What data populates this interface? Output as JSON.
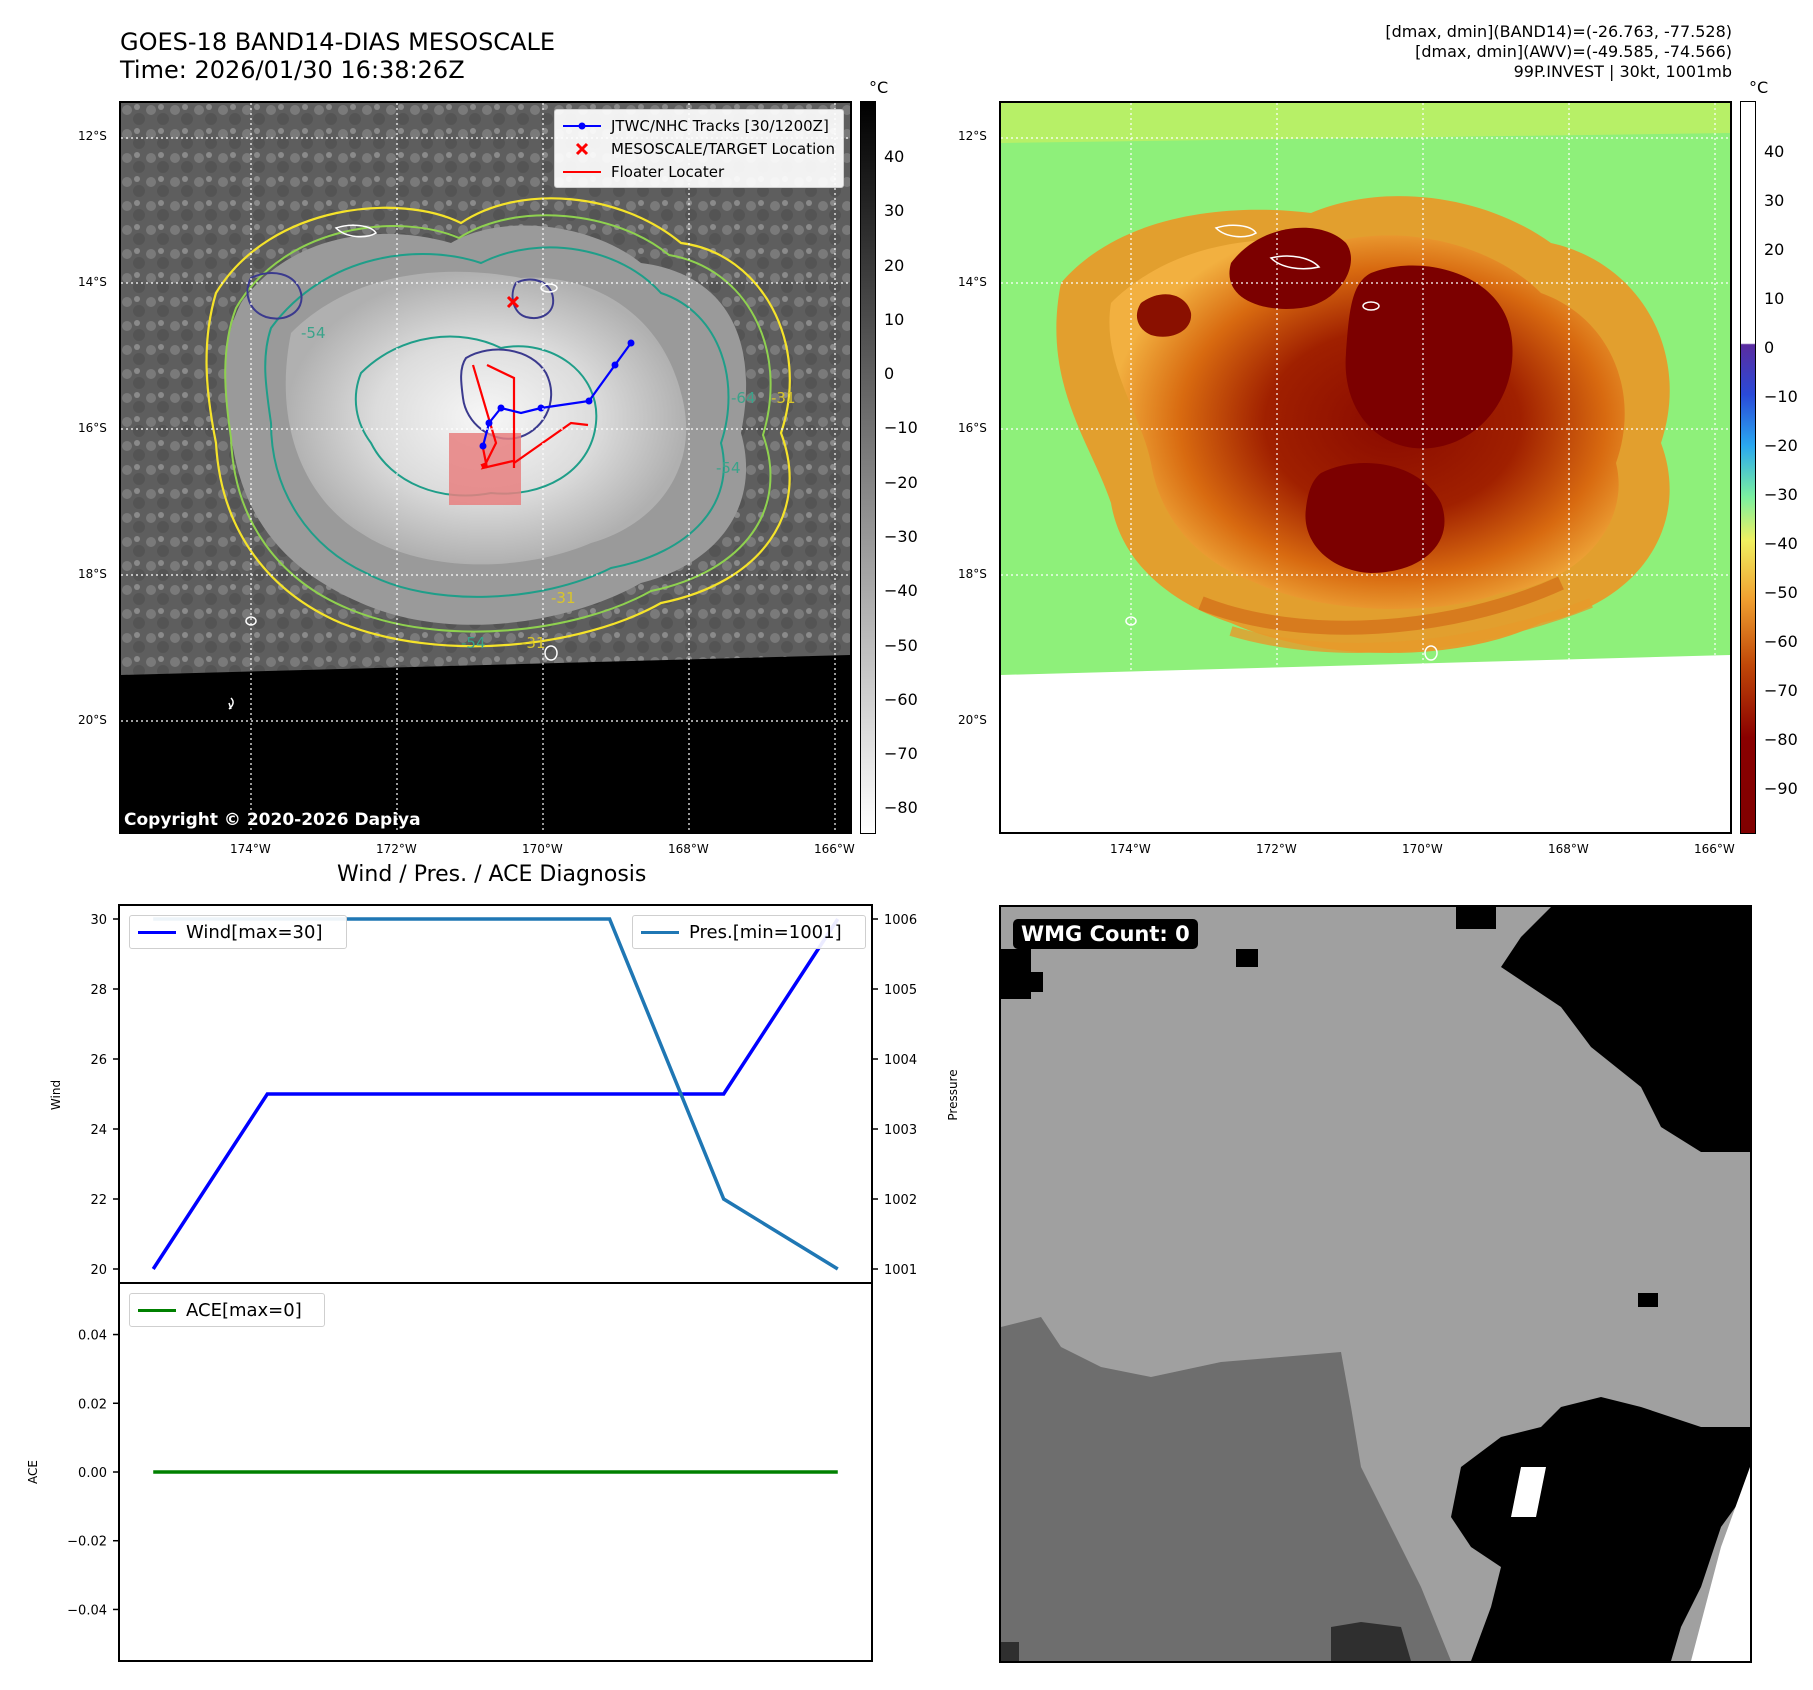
{
  "header": {
    "title_line1": "GOES-18 BAND14-DIAS MESOSCALE",
    "title_line2": "Time: 2026/01/30 16:38:26Z",
    "info_line1": "[dmax, dmin](BAND14)=(-26.763, -77.528)",
    "info_line2": "[dmax, dmin](AWV)=(-49.585, -74.566)",
    "info_line3": "99P.INVEST | 30kt, 1001mb"
  },
  "map": {
    "lat_labels": [
      "12°S",
      "14°S",
      "16°S",
      "18°S",
      "20°S"
    ],
    "lon_labels": [
      "174°W",
      "172°W",
      "170°W",
      "168°W",
      "166°W"
    ],
    "copyright": "Copyright © 2020-2026 Dapiya",
    "contour_labels": [
      "-54",
      "-31",
      "-64",
      "-54",
      "-31",
      "-54",
      "-31"
    ],
    "legend": [
      {
        "label": "JTWC/NHC Tracks [30/1200Z]",
        "color": "#0000ff",
        "marker": "line-dot"
      },
      {
        "label": "MESOSCALE/TARGET Location",
        "color": "#ff0000",
        "marker": "x"
      },
      {
        "label": "Floater Locater",
        "color": "#ff0000",
        "marker": "line"
      }
    ]
  },
  "colorbar_ir": {
    "unit": "°C",
    "ticks": [
      "40",
      "30",
      "20",
      "10",
      "0",
      "−10",
      "−20",
      "−30",
      "−40",
      "−50",
      "−60",
      "−70",
      "−80"
    ]
  },
  "colorbar_wv": {
    "unit": "°C",
    "ticks": [
      "40",
      "30",
      "20",
      "10",
      "0",
      "−10",
      "−20",
      "−30",
      "−40",
      "−50",
      "−60",
      "−70",
      "−80",
      "−90"
    ]
  },
  "diag_title": "Wind / Pres. / ACE Diagnosis",
  "wmg_label": "WMG Count: 0",
  "chart_data": [
    {
      "type": "line",
      "title": "Wind / Pres. / ACE Diagnosis",
      "ylabel": "Wind",
      "ylabel_right": "Pressure",
      "ylim": [
        19.6,
        30.4
      ],
      "ylim_right": [
        1000.8,
        1006.2
      ],
      "yticks": [
        "30",
        "28",
        "26",
        "24",
        "22",
        "20"
      ],
      "yticks_right": [
        "1006",
        "1005",
        "1004",
        "1003",
        "1002",
        "1001"
      ],
      "x": [
        0,
        1,
        2,
        3,
        4,
        5,
        6
      ],
      "series": [
        {
          "name": "Wind[max=30]",
          "axis": "left",
          "color": "#0000ff",
          "values": [
            20,
            25,
            25,
            25,
            25,
            25,
            30
          ]
        },
        {
          "name": "Pres.[min=1001]",
          "axis": "right",
          "color": "#1f77b4",
          "values": [
            1006,
            1006,
            1006,
            1006,
            1006,
            1002,
            1001
          ]
        }
      ]
    },
    {
      "type": "line",
      "ylabel": "ACE",
      "ylim": [
        -0.055,
        0.055
      ],
      "yticks": [
        "0.04",
        "0.02",
        "0.00",
        "−0.02",
        "−0.04"
      ],
      "x": [
        0,
        1,
        2,
        3,
        4,
        5,
        6
      ],
      "series": [
        {
          "name": "ACE[max=0]",
          "color": "#008000",
          "values": [
            0,
            0,
            0,
            0,
            0,
            0,
            0
          ]
        }
      ]
    }
  ]
}
